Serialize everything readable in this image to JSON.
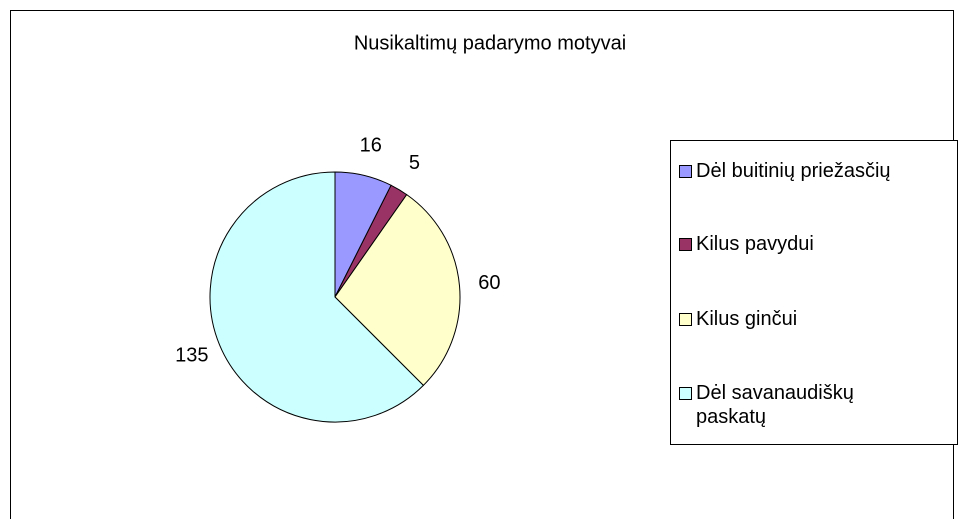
{
  "chart_data": {
    "type": "pie",
    "title": "Nusikaltimų padarymo motyvai",
    "categories": [
      "Dėl buitinių priežasčių",
      "Kilus pavydui",
      "Kilus ginčui",
      "Dėl savanaudiškų paskatų"
    ],
    "values": [
      16,
      5,
      60,
      135
    ],
    "colors": [
      "#9999ff",
      "#993366",
      "#ffffcc",
      "#ccffff"
    ],
    "legend": "right"
  }
}
